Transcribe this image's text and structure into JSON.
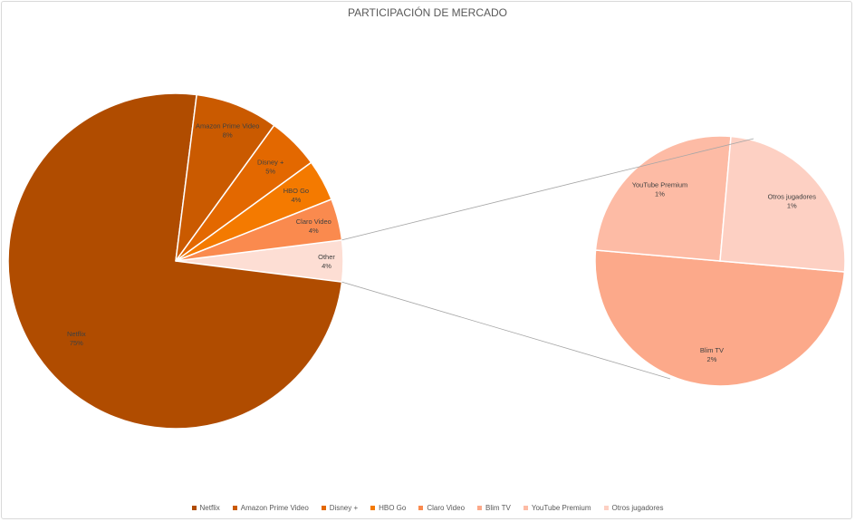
{
  "chart_data": {
    "type": "pie",
    "subtype": "pie-of-pie",
    "title": "PARTICIPACIÓN DE MERCADO",
    "primary": [
      {
        "name": "Netflix",
        "value": 75,
        "label": "75%",
        "color": "#B04C00"
      },
      {
        "name": "Amazon Prime Video",
        "value": 8,
        "label": "8%",
        "color": "#CA5A00"
      },
      {
        "name": "Disney +",
        "value": 5,
        "label": "5%",
        "color": "#E36800"
      },
      {
        "name": "HBO Go",
        "value": 4,
        "label": "4%",
        "color": "#F47A00"
      },
      {
        "name": "Claro Video",
        "value": 4,
        "label": "4%",
        "color": "#FA8A4E"
      },
      {
        "name": "Other",
        "value": 4,
        "label": "4%",
        "color": "#FDDED4"
      }
    ],
    "secondary": [
      {
        "name": "Blim TV",
        "value": 2,
        "label": "2%",
        "color": "#FCA98A"
      },
      {
        "name": "YouTube Premium",
        "value": 1,
        "label": "1%",
        "color": "#FDBBA5"
      },
      {
        "name": "Otros jugadores",
        "value": 1,
        "label": "1%",
        "color": "#FDD0C3"
      }
    ],
    "legend": [
      "Netflix",
      "Amazon Prime Video",
      "Disney +",
      "HBO Go",
      "Claro Video",
      "Blim TV",
      "YouTube Premium",
      "Otros jugadores"
    ],
    "legend_position": "bottom"
  }
}
